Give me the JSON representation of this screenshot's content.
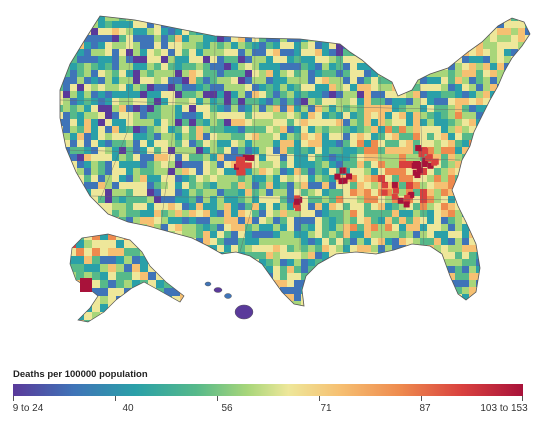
{
  "legend": {
    "title": "Deaths per 100000 population",
    "ticks": [
      "9 to 24",
      "40",
      "56",
      "71",
      "87",
      "103 to 153"
    ],
    "colors": [
      "#5a3a9a",
      "#3f74b8",
      "#2aa0a8",
      "#56b98a",
      "#a8d67a",
      "#eee79a",
      "#f6c072",
      "#ee8a4e",
      "#d9413e",
      "#a8123a"
    ]
  },
  "map": {
    "regions": [
      "contiguous-us",
      "alaska",
      "hawaii"
    ],
    "palette": [
      "#5a3a9a",
      "#3f74b8",
      "#2aa0a8",
      "#56b98a",
      "#a8d67a",
      "#eee79a",
      "#f6c072",
      "#ee8a4e",
      "#d9413e",
      "#a8123a"
    ]
  }
}
